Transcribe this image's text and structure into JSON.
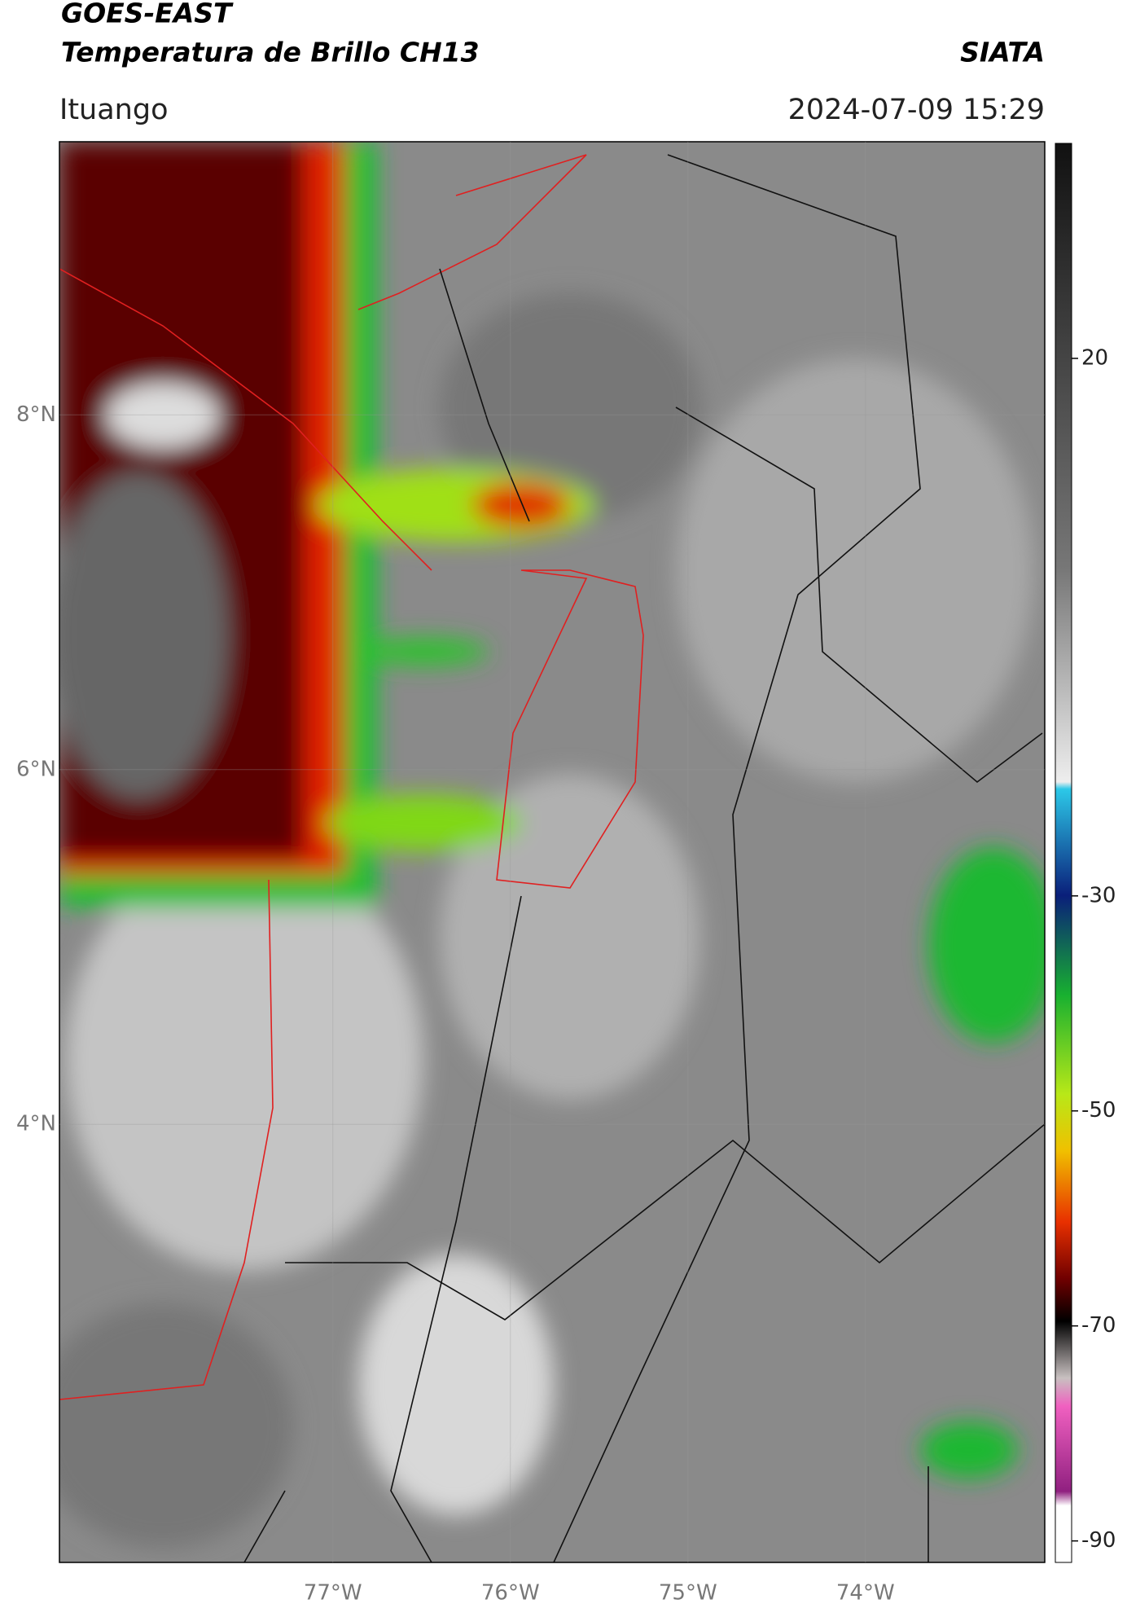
{
  "header": {
    "title_line1": "GOES-EAST",
    "title_line2": "Temperatura de Brillo CH13",
    "agency": "SIATA",
    "location": "Ituango",
    "datetime": "2024-07-09 15:29"
  },
  "map": {
    "lat_range": [
      1.53,
      9.54
    ],
    "lon_range": [
      -78.54,
      -72.99
    ],
    "lat_ticks": [
      {
        "value": 8,
        "label": "8°N"
      },
      {
        "value": 6,
        "label": "6°N"
      },
      {
        "value": 4,
        "label": "4°N"
      }
    ],
    "lon_ticks": [
      {
        "value": -77,
        "label": "77°W"
      },
      {
        "value": -76,
        "label": "76°W"
      },
      {
        "value": -75,
        "label": "75°W"
      },
      {
        "value": -74,
        "label": "74°W"
      }
    ]
  },
  "colorbar": {
    "range": [
      -92,
      40
    ],
    "ticks": [
      20,
      -30,
      -50,
      -70,
      -90
    ]
  }
}
